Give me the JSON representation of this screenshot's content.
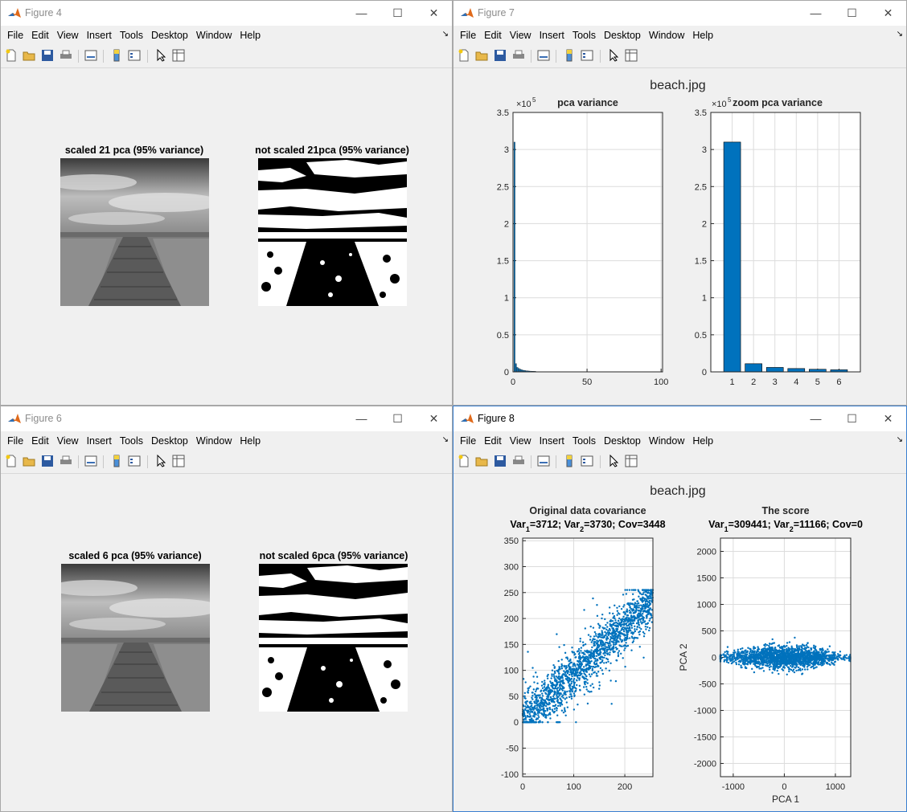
{
  "menus": [
    "File",
    "Edit",
    "View",
    "Insert",
    "Tools",
    "Desktop",
    "Window",
    "Help"
  ],
  "window_controls": {
    "minimize": "—",
    "maximize": "☐",
    "close": "✕"
  },
  "figure4": {
    "title": "Figure 4",
    "left_caption": "scaled 21 pca (95% variance)",
    "right_caption": "not scaled 21pca (95% variance)"
  },
  "figure6": {
    "title": "Figure 6",
    "left_caption": "scaled 6 pca (95% variance)",
    "right_caption": "not scaled 6pca (95% variance)"
  },
  "figure7": {
    "title": "Figure 7",
    "suptitle": "beach.jpg"
  },
  "figure8": {
    "title": "Figure 8",
    "suptitle": "beach.jpg"
  },
  "chart_data": [
    {
      "type": "bar",
      "title": "pca variance",
      "exponent": "×10",
      "exponent_power": "5",
      "x_ticks": [
        "0",
        "50",
        "100"
      ],
      "y_ticks": [
        "0",
        "0.5",
        "1",
        "1.5",
        "2",
        "2.5",
        "3",
        "3.5"
      ],
      "xlim": [
        0,
        101
      ],
      "ylim": [
        0,
        3.5
      ],
      "values": [
        3.1,
        0.11,
        0.06,
        0.045,
        0.035,
        0.028,
        0.022,
        0.018,
        0.015,
        0.013,
        0.011,
        0.01,
        0.009,
        0.008,
        0.007
      ],
      "tail_level": 0.004,
      "grid": true
    },
    {
      "type": "bar",
      "title": "zoom pca variance",
      "exponent": "×10",
      "exponent_power": "5",
      "categories": [
        "1",
        "2",
        "3",
        "4",
        "5",
        "6"
      ],
      "values": [
        3.1,
        0.11,
        0.06,
        0.045,
        0.035,
        0.028
      ],
      "y_ticks": [
        "0",
        "0.5",
        "1",
        "1.5",
        "2",
        "2.5",
        "3",
        "3.5"
      ],
      "ylim": [
        0,
        3.5
      ],
      "grid": true
    },
    {
      "type": "scatter",
      "title_line1": "Original data covariance",
      "title_parts": [
        {
          "t": "Var"
        },
        {
          "t": "1",
          "sub": true
        },
        {
          "t": "=3712; Var"
        },
        {
          "t": "2",
          "sub": true
        },
        {
          "t": "=3730; Cov=3448"
        }
      ],
      "x_ticks": [
        "0",
        "100",
        "200"
      ],
      "y_ticks": [
        "-100",
        "-50",
        "0",
        "50",
        "100",
        "150",
        "200",
        "250",
        "300",
        "350"
      ],
      "xlim": [
        0,
        255
      ],
      "ylim": [
        -105,
        355
      ],
      "grid": true
    },
    {
      "type": "scatter",
      "title_line1": "The score",
      "title_parts": [
        {
          "t": "Var"
        },
        {
          "t": "1",
          "sub": true
        },
        {
          "t": "=309441; Var"
        },
        {
          "t": "2",
          "sub": true
        },
        {
          "t": "=11166; Cov=0"
        }
      ],
      "xlabel": "PCA 1",
      "ylabel": "PCA 2",
      "x_ticks": [
        "-1000",
        "0",
        "1000"
      ],
      "y_ticks": [
        "-2000",
        "-1500",
        "-1000",
        "-500",
        "0",
        "500",
        "1000",
        "1500",
        "2000"
      ],
      "xlim": [
        -1250,
        1300
      ],
      "ylim": [
        -2250,
        2250
      ],
      "grid": true
    }
  ]
}
